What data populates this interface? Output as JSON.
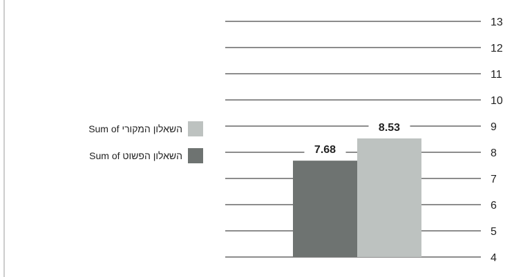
{
  "chart_data": {
    "type": "bar",
    "title": "",
    "xlabel": "",
    "ylabel": "",
    "ylim": [
      4,
      13
    ],
    "yticks": [
      4,
      5,
      6,
      7,
      8,
      9,
      10,
      11,
      12,
      13
    ],
    "y_axis_position": "right",
    "grid": true,
    "legend_position": "left",
    "series": [
      {
        "name": "Sum of השאלון הפשוט",
        "value": 7.68,
        "label": "7.68",
        "color": "#6e7371"
      },
      {
        "name": "Sum of השאלון המקורי",
        "value": 8.53,
        "label": "8.53",
        "color": "#bdc2c0"
      }
    ],
    "legend": [
      {
        "name": "Sum of השאלון המקורי",
        "color": "#bdc2c0"
      },
      {
        "name": "Sum of השאלון הפשוט",
        "color": "#6e7371"
      }
    ]
  }
}
